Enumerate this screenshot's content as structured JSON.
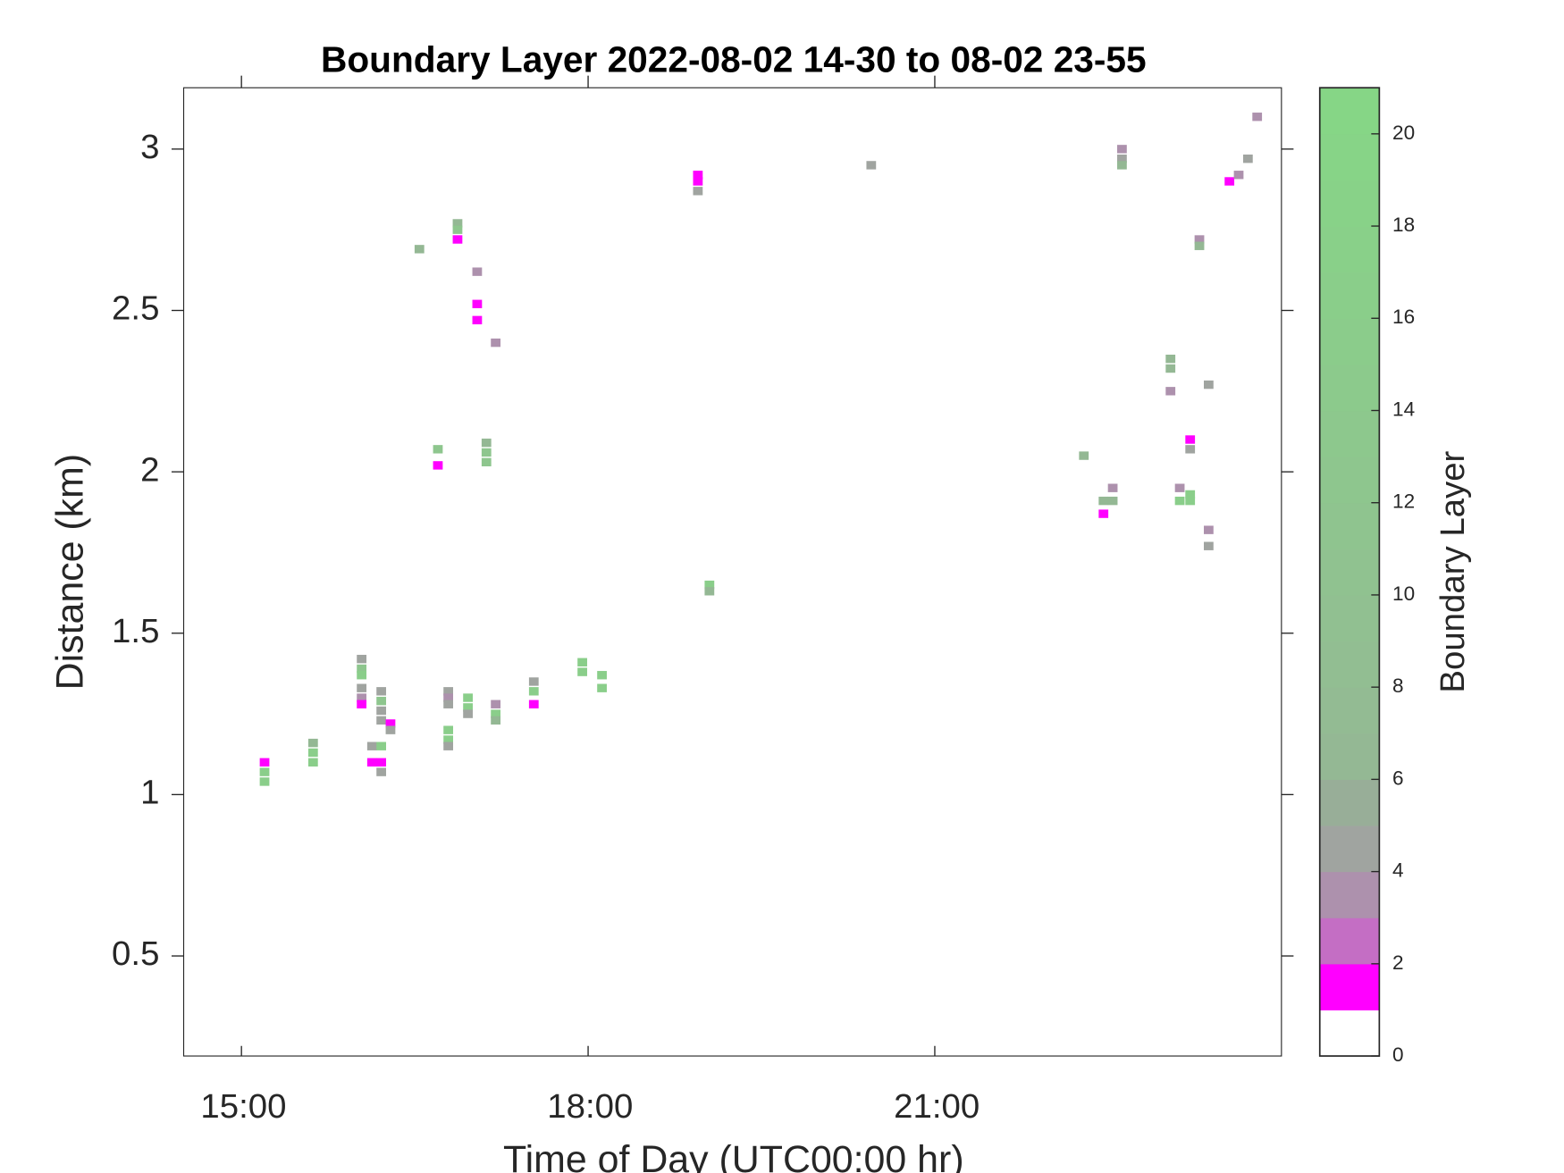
{
  "chart_data": {
    "type": "heatmap",
    "title": "Boundary Layer 2022-08-02 14-30 to 08-02 23-55",
    "x_label": "Time of Day (UTC00:00 hr)",
    "y_label": "Distance (km)",
    "colorbar_label": "Boundary Layer",
    "xlim": [
      14.5,
      24
    ],
    "ylim": [
      0.19,
      3.19
    ],
    "xticks": [
      {
        "value": 15,
        "label": "15:00"
      },
      {
        "value": 18,
        "label": "18:00"
      },
      {
        "value": 21,
        "label": "21:00"
      }
    ],
    "yticks": [
      0.5,
      1,
      1.5,
      2,
      2.5,
      3
    ],
    "clim": [
      0,
      21
    ],
    "cticks": [
      0,
      2,
      4,
      6,
      8,
      10,
      12,
      14,
      16,
      18,
      20
    ],
    "colormap": [
      "#ffffff",
      "#ff00ff",
      "#c46ec4",
      "#ad91ad",
      "#a0a4a0",
      "#98ae98",
      "#94b894",
      "#93bb93",
      "#92be92",
      "#91c091",
      "#90c290",
      "#8fc48f",
      "#8ec68e",
      "#8dc88d",
      "#8cca8c",
      "#8bcc8b",
      "#8ace8a",
      "#89d089",
      "#88d288",
      "#87d487",
      "#86d686"
    ],
    "x": [
      15.2,
      15.2,
      15.2,
      15.62,
      15.62,
      15.62,
      16.04,
      16.04,
      16.04,
      16.04,
      16.04,
      16.04,
      16.13,
      16.13,
      16.21,
      16.21,
      16.21,
      16.21,
      16.21,
      16.21,
      16.21,
      16.29,
      16.29,
      16.54,
      16.7,
      16.7,
      16.79,
      16.79,
      16.79,
      16.79,
      16.79,
      16.79,
      16.87,
      16.87,
      16.87,
      16.96,
      16.96,
      16.96,
      17.04,
      17.04,
      17.04,
      17.12,
      17.12,
      17.12,
      17.2,
      17.2,
      17.2,
      17.2,
      17.53,
      17.53,
      17.53,
      17.95,
      17.95,
      18.12,
      18.12,
      18.95,
      18.95,
      18.95,
      19.05,
      19.05,
      20.45,
      22.29,
      22.46,
      22.46,
      22.54,
      22.54,
      22.62,
      22.62,
      22.62,
      23.04,
      23.04,
      23.04,
      23.12,
      23.12,
      23.21,
      23.21,
      23.21,
      23.21,
      23.29,
      23.29,
      23.37,
      23.37,
      23.37,
      23.55,
      23.63,
      23.71,
      23.79
    ],
    "y": [
      1.1,
      1.07,
      1.04,
      1.16,
      1.13,
      1.1,
      1.42,
      1.39,
      1.37,
      1.33,
      1.3,
      1.28,
      1.15,
      1.1,
      1.15,
      1.1,
      1.07,
      1.32,
      1.29,
      1.26,
      1.23,
      1.22,
      1.2,
      2.69,
      2.07,
      2.02,
      1.32,
      1.3,
      1.28,
      1.2,
      1.17,
      1.15,
      2.77,
      2.75,
      2.72,
      1.3,
      1.27,
      1.25,
      2.62,
      2.52,
      2.47,
      2.09,
      2.06,
      2.03,
      2.4,
      1.28,
      1.25,
      1.23,
      1.35,
      1.32,
      1.28,
      1.41,
      1.38,
      1.37,
      1.33,
      2.92,
      2.9,
      2.87,
      1.65,
      1.63,
      2.95,
      2.05,
      1.91,
      1.87,
      1.95,
      1.91,
      3.0,
      2.97,
      2.95,
      2.35,
      2.32,
      2.25,
      1.95,
      1.91,
      1.93,
      1.91,
      2.1,
      2.07,
      2.72,
      2.7,
      2.27,
      1.82,
      1.77,
      2.9,
      2.92,
      2.97,
      3.1
    ],
    "values": [
      1.5,
      16,
      16,
      6.5,
      16,
      16,
      4.5,
      12,
      16,
      4.5,
      3.5,
      1.5,
      4.5,
      1.5,
      16,
      1.5,
      4.5,
      4.5,
      12,
      4.5,
      4.5,
      1.5,
      4.5,
      6.5,
      12,
      1.5,
      4.5,
      3.5,
      4.5,
      16,
      16,
      4.5,
      6.5,
      12,
      1.5,
      16,
      16,
      4.5,
      3.5,
      1.5,
      1.5,
      6.5,
      12,
      12,
      3.5,
      3.5,
      16,
      6.5,
      4.5,
      16,
      1.5,
      16,
      16,
      16,
      16,
      1.5,
      1.5,
      4.5,
      16,
      6.5,
      4.5,
      6.5,
      6.5,
      1.5,
      3.5,
      6.5,
      3.5,
      4.5,
      6.5,
      6.5,
      6.5,
      3.5,
      3.5,
      16,
      16,
      16,
      1.5,
      4.5,
      3.5,
      6.5,
      4.5,
      3.5,
      4.5,
      1.5,
      3.5,
      4.5,
      3.5
    ]
  }
}
